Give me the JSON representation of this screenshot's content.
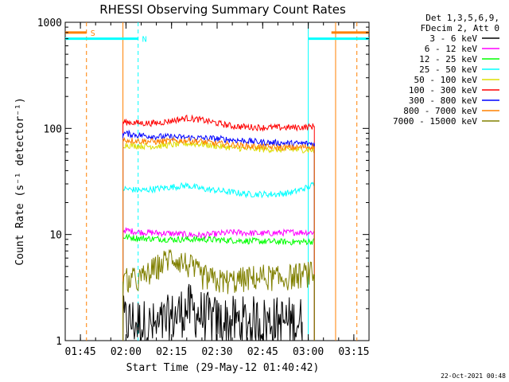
{
  "chart_data": {
    "type": "line",
    "title": "RHESSI Observing Summary Count Rates",
    "xlabel": "Start Time (29-May-12 01:40:42)",
    "ylabel": "Count Rate (s⁻¹ detector⁻¹)",
    "yscale": "log",
    "ylim": [
      1,
      1000
    ],
    "xlim": [
      "01:40",
      "03:20"
    ],
    "x_ticks": [
      "01:45",
      "02:00",
      "02:15",
      "02:30",
      "02:45",
      "03:00",
      "03:15"
    ],
    "y_ticks": [
      "1",
      "10",
      "100",
      "1000"
    ],
    "legend_header": [
      "Det 1,3,5,6,9,",
      "FDecim 2, Att 0"
    ],
    "legend_position": "right, outside",
    "series": [
      {
        "name": "3 - 6 keV",
        "color": "#000000",
        "x": [
          "01:59",
          "02:03",
          "02:10",
          "02:20",
          "02:30",
          "02:40",
          "02:50",
          "02:58"
        ],
        "values": [
          1.5,
          1.5,
          1.3,
          2.0,
          1.5,
          1.5,
          1.5,
          1.5
        ]
      },
      {
        "name": "6 - 12 keV",
        "color": "#ff00ff",
        "x": [
          "01:59",
          "02:05",
          "02:15",
          "02:25",
          "02:35",
          "02:45",
          "02:55",
          "03:02"
        ],
        "values": [
          11,
          10.5,
          10.2,
          9.8,
          10.5,
          10.2,
          10.5,
          10.5
        ]
      },
      {
        "name": "12 - 25 keV",
        "color": "#00ff00",
        "x": [
          "01:59",
          "02:05",
          "02:15",
          "02:25",
          "02:35",
          "02:45",
          "02:55",
          "03:02"
        ],
        "values": [
          9.5,
          9.2,
          9.0,
          9.0,
          8.8,
          8.6,
          8.5,
          8.6
        ]
      },
      {
        "name": "25 - 50 keV",
        "color": "#00ffff",
        "x": [
          "01:59",
          "02:05",
          "02:10",
          "02:15",
          "02:20",
          "02:25",
          "02:30",
          "02:35",
          "02:40",
          "02:45",
          "02:50",
          "02:55",
          "03:00",
          "03:02"
        ],
        "values": [
          27,
          26,
          27,
          28,
          29,
          27,
          26,
          25,
          24,
          24,
          24,
          25,
          28,
          30
        ]
      },
      {
        "name": "50 - 100 keV",
        "color": "#dddd00",
        "x": [
          "01:59",
          "02:05",
          "02:10",
          "02:15",
          "02:20",
          "02:25",
          "02:30",
          "02:35",
          "02:40",
          "02:45",
          "02:50",
          "02:55",
          "03:00",
          "03:02"
        ],
        "values": [
          70,
          68,
          68,
          70,
          72,
          71,
          68,
          66,
          64,
          64,
          63,
          63,
          63,
          62
        ]
      },
      {
        "name": "100 - 300 keV",
        "color": "#ff0000",
        "x": [
          "01:59",
          "02:05",
          "02:10",
          "02:15",
          "02:20",
          "02:25",
          "02:30",
          "02:35",
          "02:40",
          "02:45",
          "02:50",
          "02:55",
          "03:00",
          "03:02"
        ],
        "values": [
          115,
          112,
          112,
          118,
          125,
          120,
          112,
          105,
          103,
          102,
          102,
          102,
          103,
          105
        ]
      },
      {
        "name": "300 - 800 keV",
        "color": "#0000ff",
        "x": [
          "01:59",
          "02:05",
          "02:10",
          "02:15",
          "02:20",
          "02:25",
          "02:30",
          "02:35",
          "02:40",
          "02:45",
          "02:50",
          "02:55",
          "03:00",
          "03:02"
        ],
        "values": [
          90,
          86,
          84,
          83,
          82,
          81,
          80,
          78,
          76,
          74,
          73,
          72,
          72,
          72
        ]
      },
      {
        "name": "800 - 7000 keV",
        "color": "#ff8000",
        "x": [
          "01:59",
          "02:05",
          "02:10",
          "02:15",
          "02:20",
          "02:25",
          "02:30",
          "02:35",
          "02:40",
          "02:45",
          "02:50",
          "02:55",
          "03:00",
          "03:02"
        ],
        "values": [
          78,
          76,
          75,
          76,
          77,
          75,
          72,
          70,
          68,
          67,
          66,
          66,
          67,
          68
        ]
      },
      {
        "name": "7000 - 15000 keV",
        "color": "#808000",
        "x": [
          "01:59",
          "02:05",
          "02:10",
          "02:15",
          "02:20",
          "02:25",
          "02:30",
          "02:35",
          "02:40",
          "02:45",
          "02:50",
          "02:55",
          "03:00",
          "03:02"
        ],
        "values": [
          3.6,
          3.8,
          4.8,
          6.2,
          5.2,
          4.0,
          3.6,
          3.6,
          3.8,
          4.0,
          3.8,
          4.0,
          4.2,
          4.2
        ]
      }
    ],
    "interval_markers": [
      {
        "label": "S",
        "color": "#ff8000",
        "style": "dashed",
        "x": [
          "01:47",
          "03:16"
        ],
        "note_y": 800
      },
      {
        "label": "N",
        "color": "#00ffff",
        "style": "dashed",
        "x": [
          "02:04"
        ],
        "note_y": 700
      }
    ],
    "solid_boundaries": [
      {
        "color": "#00ffff",
        "x": [
          "03:00"
        ]
      },
      {
        "color": "#ff8000",
        "x": [
          "01:59",
          "03:09"
        ]
      }
    ],
    "footer_date": "22-Oct-2021 00:48"
  }
}
